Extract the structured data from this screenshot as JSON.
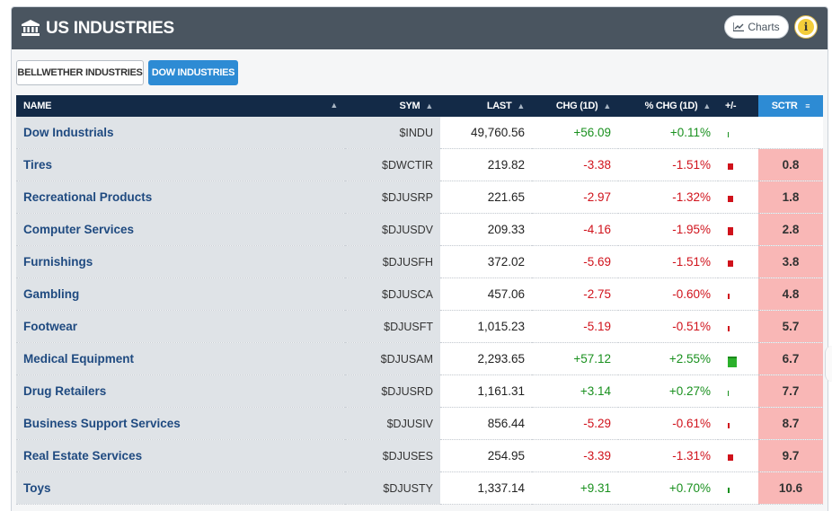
{
  "header": {
    "title": "US INDUSTRIES",
    "charts_label": "Charts",
    "info_label": "i"
  },
  "tabs": [
    {
      "label": "BELLWETHER INDUSTRIES",
      "active": false
    },
    {
      "label": "DOW INDUSTRIES",
      "active": true
    }
  ],
  "table": {
    "columns": {
      "name": "NAME",
      "sym": "SYM",
      "last": "LAST",
      "chg": "CHG (1D)",
      "pct": "% CHG (1D)",
      "bar": "+/-",
      "sctr": "SCTR"
    },
    "rows": [
      {
        "name": "Dow Industrials",
        "sym": "$INDU",
        "last": "49,760.56",
        "chg": "+56.09",
        "pct": "+0.11%",
        "sctr": "",
        "dir": "pos",
        "pct_value": 0.11
      },
      {
        "name": "Tires",
        "sym": "$DWCTIR",
        "last": "219.82",
        "chg": "-3.38",
        "pct": "-1.51%",
        "sctr": "0.8",
        "dir": "neg",
        "pct_value": -1.51
      },
      {
        "name": "Recreational Products",
        "sym": "$DJUSRP",
        "last": "221.65",
        "chg": "-2.97",
        "pct": "-1.32%",
        "sctr": "1.8",
        "dir": "neg",
        "pct_value": -1.32
      },
      {
        "name": "Computer Services",
        "sym": "$DJUSDV",
        "last": "209.33",
        "chg": "-4.16",
        "pct": "-1.95%",
        "sctr": "2.8",
        "dir": "neg",
        "pct_value": -1.95
      },
      {
        "name": "Furnishings",
        "sym": "$DJUSFH",
        "last": "372.02",
        "chg": "-5.69",
        "pct": "-1.51%",
        "sctr": "3.8",
        "dir": "neg",
        "pct_value": -1.51
      },
      {
        "name": "Gambling",
        "sym": "$DJUSCA",
        "last": "457.06",
        "chg": "-2.75",
        "pct": "-0.60%",
        "sctr": "4.8",
        "dir": "neg",
        "pct_value": -0.6
      },
      {
        "name": "Footwear",
        "sym": "$DJUSFT",
        "last": "1,015.23",
        "chg": "-5.19",
        "pct": "-0.51%",
        "sctr": "5.7",
        "dir": "neg",
        "pct_value": -0.51
      },
      {
        "name": "Medical Equipment",
        "sym": "$DJUSAM",
        "last": "2,293.65",
        "chg": "+57.12",
        "pct": "+2.55%",
        "sctr": "6.7",
        "dir": "pos",
        "pct_value": 2.55
      },
      {
        "name": "Drug Retailers",
        "sym": "$DJUSRD",
        "last": "1,161.31",
        "chg": "+3.14",
        "pct": "+0.27%",
        "sctr": "7.7",
        "dir": "pos",
        "pct_value": 0.27
      },
      {
        "name": "Business Support Services",
        "sym": "$DJUSIV",
        "last": "856.44",
        "chg": "-5.29",
        "pct": "-0.61%",
        "sctr": "8.7",
        "dir": "neg",
        "pct_value": -0.61
      },
      {
        "name": "Real Estate Services",
        "sym": "$DJUSES",
        "last": "254.95",
        "chg": "-3.39",
        "pct": "-1.31%",
        "sctr": "9.7",
        "dir": "neg",
        "pct_value": -1.31
      },
      {
        "name": "Toys",
        "sym": "$DJUSTY",
        "last": "1,337.14",
        "chg": "+9.31",
        "pct": "+0.70%",
        "sctr": "10.6",
        "dir": "pos",
        "pct_value": 0.7
      }
    ]
  },
  "colors": {
    "header_bg": "#4a5560",
    "table_header_bg": "#132a47",
    "accent_blue": "#2d8bd4",
    "positive": "#19901e",
    "negative": "#d0121b",
    "sctr_low_bg": "#f9b7b6"
  }
}
